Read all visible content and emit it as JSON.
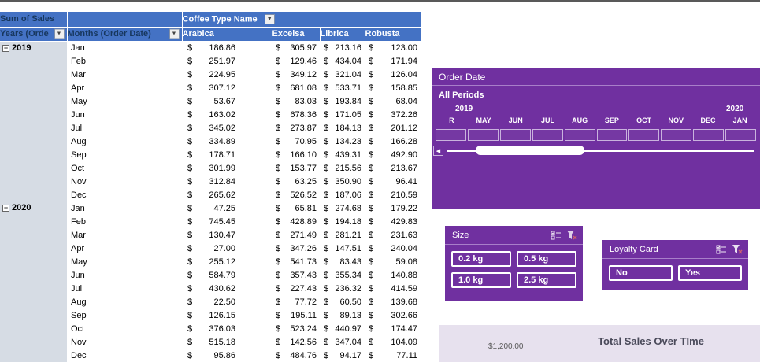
{
  "icons": {
    "dropdown": "▼",
    "collapse": "−",
    "scroll_left": "◀"
  },
  "colors": {
    "header_blue": "#4472C4",
    "header_text_navy": "#17375E",
    "row_band": "#D6DCE4",
    "slicer_purple": "#7030A0",
    "chart_bg": "#E7E1EE"
  },
  "pivot": {
    "measure_label": "Sum of Sales",
    "row_year_label": "Years (Orde",
    "row_month_label": "Months (Order Date)",
    "column_field_label": "Coffee Type Name",
    "currency": "$",
    "column_headers": [
      "Arabica",
      "Excelsa",
      "Librica",
      "Robusta"
    ],
    "groups": [
      {
        "year": "2019",
        "rows": [
          {
            "month": "Jan",
            "values": [
              "186.86",
              "305.97",
              "213.16",
              "123.00"
            ]
          },
          {
            "month": "Feb",
            "values": [
              "251.97",
              "129.46",
              "434.04",
              "171.94"
            ]
          },
          {
            "month": "Mar",
            "values": [
              "224.95",
              "349.12",
              "321.04",
              "126.04"
            ]
          },
          {
            "month": "Apr",
            "values": [
              "307.12",
              "681.08",
              "533.71",
              "158.85"
            ]
          },
          {
            "month": "May",
            "values": [
              "53.67",
              "83.03",
              "193.84",
              "68.04"
            ]
          },
          {
            "month": "Jun",
            "values": [
              "163.02",
              "678.36",
              "171.05",
              "372.26"
            ]
          },
          {
            "month": "Jul",
            "values": [
              "345.02",
              "273.87",
              "184.13",
              "201.12"
            ]
          },
          {
            "month": "Aug",
            "values": [
              "334.89",
              "70.95",
              "134.23",
              "166.28"
            ]
          },
          {
            "month": "Sep",
            "values": [
              "178.71",
              "166.10",
              "439.31",
              "492.90"
            ]
          },
          {
            "month": "Oct",
            "values": [
              "301.99",
              "153.77",
              "215.56",
              "213.67"
            ]
          },
          {
            "month": "Nov",
            "values": [
              "312.84",
              "63.25",
              "350.90",
              "96.41"
            ]
          },
          {
            "month": "Dec",
            "values": [
              "265.62",
              "526.52",
              "187.06",
              "210.59"
            ]
          }
        ]
      },
      {
        "year": "2020",
        "rows": [
          {
            "month": "Jan",
            "values": [
              "47.25",
              "65.81",
              "274.68",
              "179.22"
            ]
          },
          {
            "month": "Feb",
            "values": [
              "745.45",
              "428.89",
              "194.18",
              "429.83"
            ]
          },
          {
            "month": "Mar",
            "values": [
              "130.47",
              "271.49",
              "281.21",
              "231.63"
            ]
          },
          {
            "month": "Apr",
            "values": [
              "27.00",
              "347.26",
              "147.51",
              "240.04"
            ]
          },
          {
            "month": "May",
            "values": [
              "255.12",
              "541.73",
              "83.43",
              "59.08"
            ]
          },
          {
            "month": "Jun",
            "values": [
              "584.79",
              "357.43",
              "355.34",
              "140.88"
            ]
          },
          {
            "month": "Jul",
            "values": [
              "430.62",
              "227.43",
              "236.32",
              "414.59"
            ]
          },
          {
            "month": "Aug",
            "values": [
              "22.50",
              "77.72",
              "60.50",
              "139.68"
            ]
          },
          {
            "month": "Sep",
            "values": [
              "126.15",
              "195.11",
              "89.13",
              "302.66"
            ]
          },
          {
            "month": "Oct",
            "values": [
              "376.03",
              "523.24",
              "440.97",
              "174.47"
            ]
          },
          {
            "month": "Nov",
            "values": [
              "515.18",
              "142.56",
              "347.04",
              "104.09"
            ]
          },
          {
            "month": "Dec",
            "values": [
              "95.86",
              "484.76",
              "94.17",
              "77.11"
            ]
          }
        ]
      }
    ]
  },
  "timeline": {
    "title": "Order Date",
    "period_label": "All Periods",
    "year_labels": [
      "2019",
      "2020"
    ],
    "month_labels": [
      "R",
      "MAY",
      "JUN",
      "JUL",
      "AUG",
      "SEP",
      "OCT",
      "NOV",
      "DEC",
      "JAN"
    ]
  },
  "slicer_size": {
    "title": "Size",
    "buttons": [
      "0.2 kg",
      "0.5 kg",
      "1.0 kg",
      "2.5 kg"
    ]
  },
  "slicer_loyalty": {
    "title": "Loyalty Card",
    "buttons": [
      "No",
      "Yes"
    ]
  },
  "chart": {
    "axis_label": "$1,200.00",
    "title": "Total Sales Over TIme"
  }
}
